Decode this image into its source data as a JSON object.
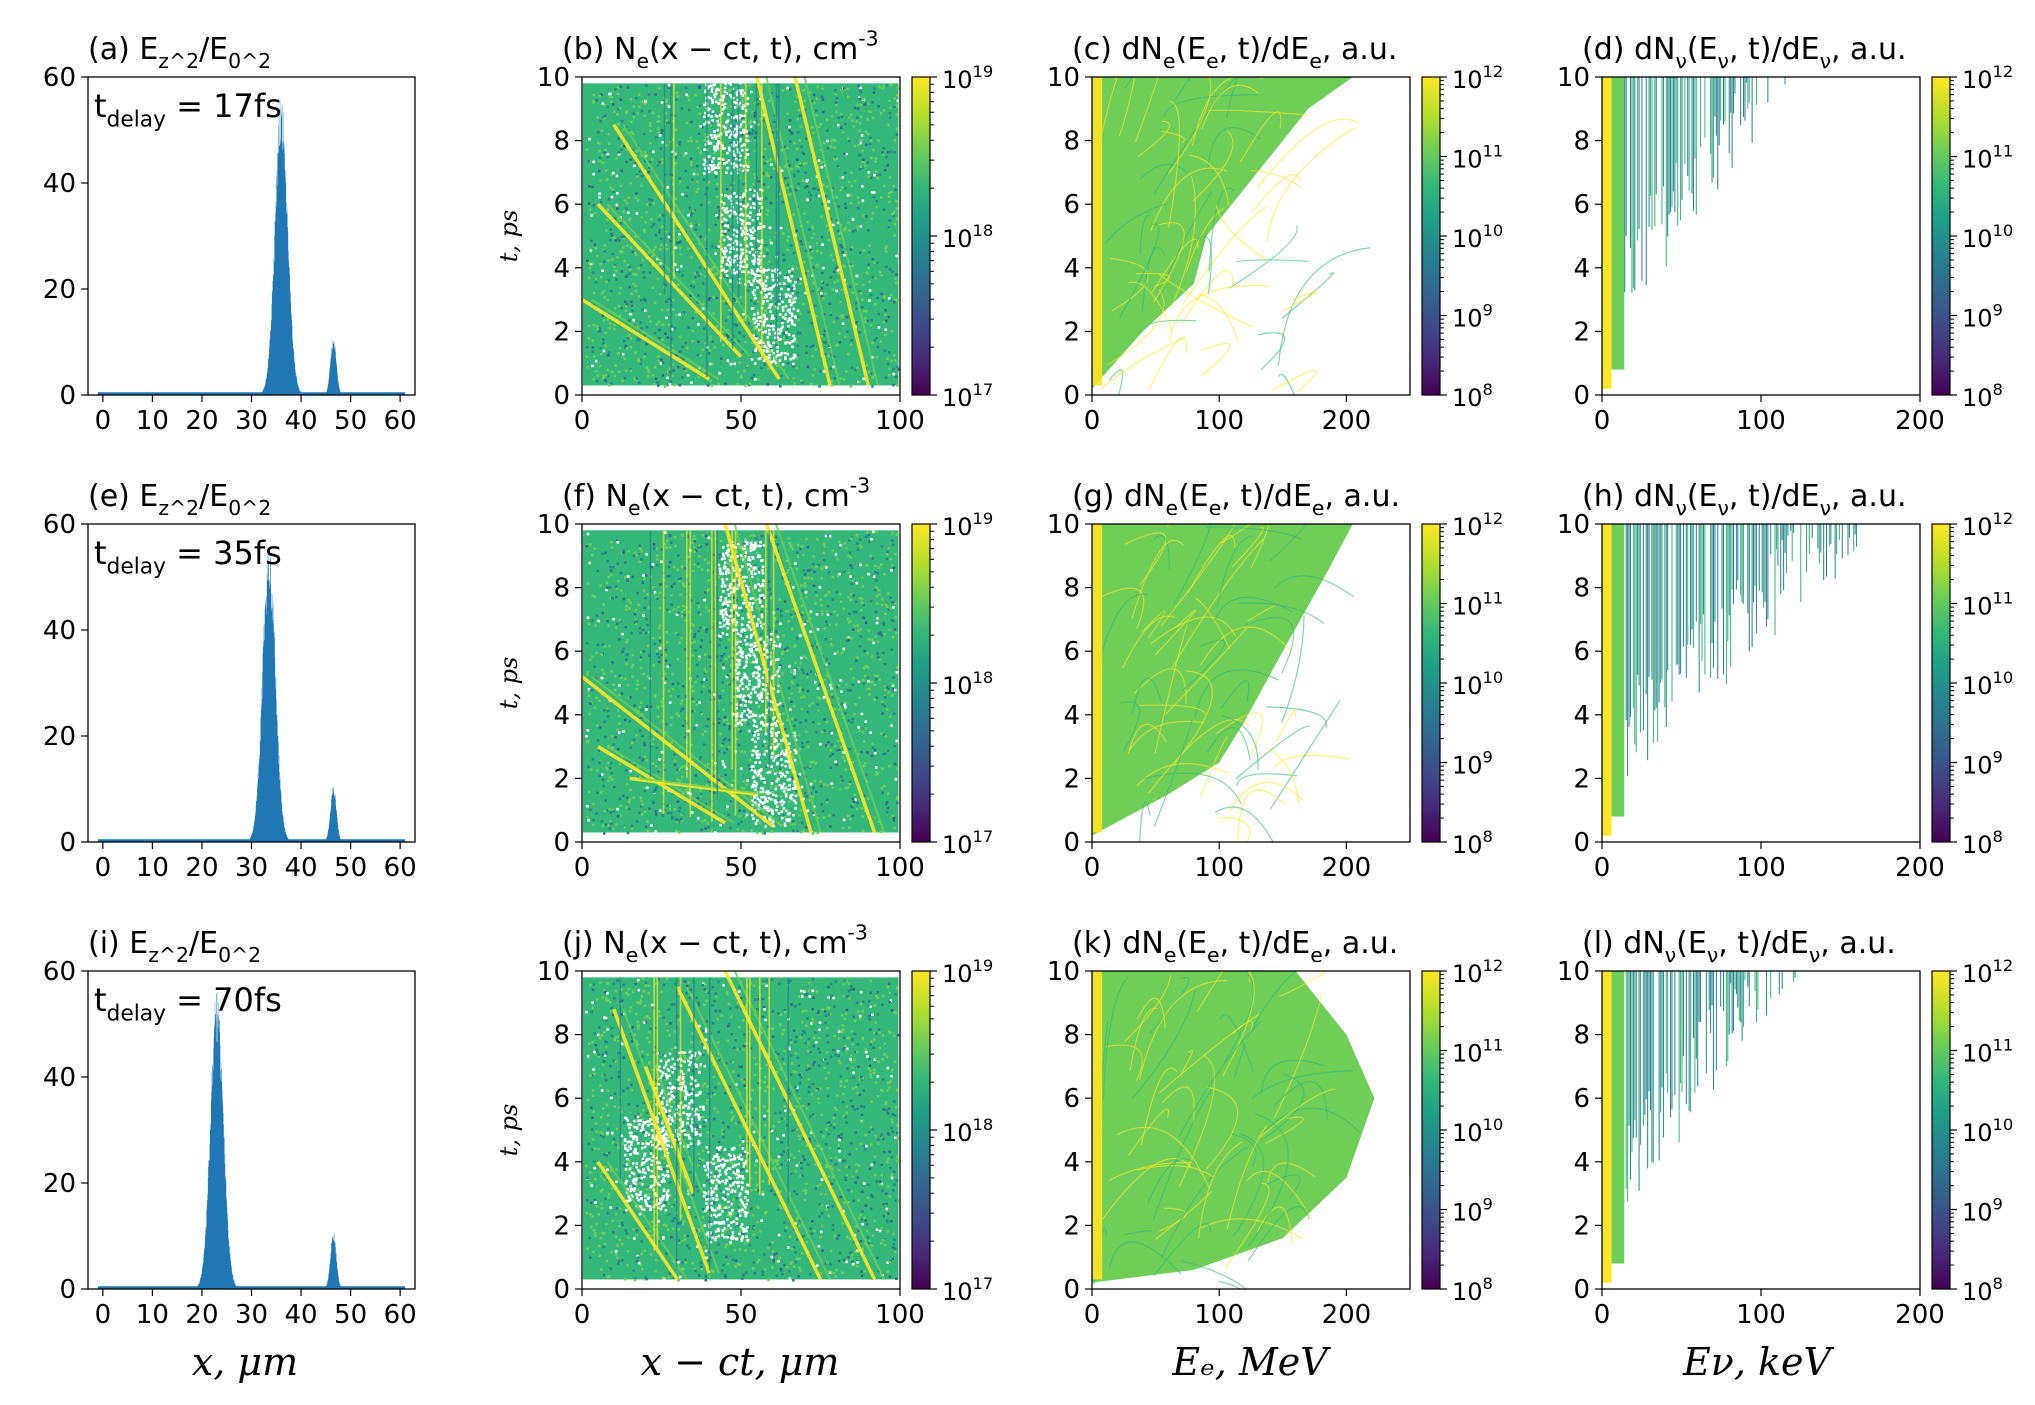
{
  "colors": {
    "bar": "#1f77b4",
    "viridis": [
      "#440154",
      "#482878",
      "#3e4a89",
      "#31688e",
      "#26828e",
      "#1f9e89",
      "#35b779",
      "#6ece58",
      "#b5de2b",
      "#fde725"
    ]
  },
  "xlabels": {
    "field": "x, μm",
    "density": "x − ct, μm",
    "electron": "Eₑ, MeV",
    "neutrino": "Eν, keV"
  },
  "ylabel_density": "t, ps",
  "chart_data": [
    {
      "type": "bar",
      "panel": "a",
      "title": "(a) E_z^2/E_0^2",
      "annotation": "t_delay = 17fs",
      "xlim": [
        -3,
        63
      ],
      "ylim": [
        0,
        60
      ],
      "xticks": [
        0,
        10,
        20,
        30,
        40,
        50,
        60
      ],
      "yticks": [
        0,
        20,
        40,
        60
      ],
      "peaks": [
        {
          "center": 36,
          "height": 54,
          "width": 1.3
        },
        {
          "center": 46.5,
          "height": 10.5,
          "width": 0.6
        }
      ]
    },
    {
      "type": "heatmap",
      "panel": "b",
      "title": "(b) N_e(x − ct, t), cm^-3",
      "xlim": [
        0,
        100
      ],
      "ylim": [
        0,
        10
      ],
      "xticks": [
        0,
        50,
        100
      ],
      "yticks": [
        0,
        2,
        4,
        6,
        8,
        10
      ],
      "colorbar": {
        "min_exp": 17,
        "max_exp": 19,
        "labels": [
          "10^19",
          "10^18",
          "10^17"
        ]
      }
    },
    {
      "type": "heatmap",
      "panel": "c",
      "title": "(c) dN_e(E_e, t)/dE_e, a.u.",
      "xlim": [
        0,
        250
      ],
      "ylim": [
        0,
        10
      ],
      "xticks": [
        0,
        100,
        200
      ],
      "yticks": [
        0,
        2,
        4,
        6,
        8,
        10
      ],
      "colorbar": {
        "min_exp": 8,
        "max_exp": 12,
        "labels": [
          "10^12",
          "10^11",
          "10^10",
          "10^9",
          "10^8"
        ]
      }
    },
    {
      "type": "heatmap",
      "panel": "d",
      "title": "(d) dN_ν(E_ν, t)/dE_ν, a.u.",
      "xlim": [
        0,
        200
      ],
      "ylim": [
        0,
        10
      ],
      "xticks": [
        0,
        100,
        200
      ],
      "yticks": [
        0,
        2,
        4,
        6,
        8,
        10
      ],
      "colorbar": {
        "min_exp": 8,
        "max_exp": 12,
        "labels": [
          "10^12",
          "10^11",
          "10^10",
          "10^9",
          "10^8"
        ]
      }
    },
    {
      "type": "bar",
      "panel": "e",
      "title": "(e) E_z^2/E_0^2",
      "annotation": "t_delay = 35fs",
      "xlim": [
        -3,
        63
      ],
      "ylim": [
        0,
        60
      ],
      "xticks": [
        0,
        10,
        20,
        30,
        40,
        50,
        60
      ],
      "yticks": [
        0,
        20,
        40,
        60
      ],
      "peaks": [
        {
          "center": 33.5,
          "height": 54,
          "width": 1.3
        },
        {
          "center": 46.5,
          "height": 10.5,
          "width": 0.6
        }
      ]
    },
    {
      "type": "heatmap",
      "panel": "f",
      "title": "(f) N_e(x − ct, t), cm^-3",
      "xlim": [
        0,
        100
      ],
      "ylim": [
        0,
        10
      ],
      "xticks": [
        0,
        50,
        100
      ],
      "yticks": [
        0,
        2,
        4,
        6,
        8,
        10
      ],
      "colorbar": {
        "min_exp": 17,
        "max_exp": 19,
        "labels": [
          "10^19",
          "10^18",
          "10^17"
        ]
      }
    },
    {
      "type": "heatmap",
      "panel": "g",
      "title": "(g) dN_e(E_e, t)/dE_e, a.u.",
      "xlim": [
        0,
        250
      ],
      "ylim": [
        0,
        10
      ],
      "xticks": [
        0,
        100,
        200
      ],
      "yticks": [
        0,
        2,
        4,
        6,
        8,
        10
      ],
      "colorbar": {
        "min_exp": 8,
        "max_exp": 12,
        "labels": [
          "10^12",
          "10^11",
          "10^10",
          "10^9",
          "10^8"
        ]
      }
    },
    {
      "type": "heatmap",
      "panel": "h",
      "title": "(h) dN_ν(E_ν, t)/dE_ν, a.u.",
      "xlim": [
        0,
        200
      ],
      "ylim": [
        0,
        10
      ],
      "xticks": [
        0,
        100,
        200
      ],
      "yticks": [
        0,
        2,
        4,
        6,
        8,
        10
      ],
      "colorbar": {
        "min_exp": 8,
        "max_exp": 12,
        "labels": [
          "10^12",
          "10^11",
          "10^10",
          "10^9",
          "10^8"
        ]
      }
    },
    {
      "type": "bar",
      "panel": "i",
      "title": "(i) E_z^2/E_0^2",
      "annotation": "t_delay = 70fs",
      "xlim": [
        -3,
        63
      ],
      "ylim": [
        0,
        60
      ],
      "xticks": [
        0,
        10,
        20,
        30,
        40,
        50,
        60
      ],
      "yticks": [
        0,
        20,
        40,
        60
      ],
      "peaks": [
        {
          "center": 23,
          "height": 54,
          "width": 1.3
        },
        {
          "center": 46.5,
          "height": 10.5,
          "width": 0.6
        }
      ]
    },
    {
      "type": "heatmap",
      "panel": "j",
      "title": "(j) N_e(x − ct, t), cm^-3",
      "xlim": [
        0,
        100
      ],
      "ylim": [
        0,
        10
      ],
      "xticks": [
        0,
        50,
        100
      ],
      "yticks": [
        0,
        2,
        4,
        6,
        8,
        10
      ],
      "colorbar": {
        "min_exp": 17,
        "max_exp": 19,
        "labels": [
          "10^19",
          "10^18",
          "10^17"
        ]
      }
    },
    {
      "type": "heatmap",
      "panel": "k",
      "title": "(k) dN_e(E_e, t)/dE_e, a.u.",
      "xlim": [
        0,
        250
      ],
      "ylim": [
        0,
        10
      ],
      "xticks": [
        0,
        100,
        200
      ],
      "yticks": [
        0,
        2,
        4,
        6,
        8,
        10
      ],
      "colorbar": {
        "min_exp": 8,
        "max_exp": 12,
        "labels": [
          "10^12",
          "10^11",
          "10^10",
          "10^9",
          "10^8"
        ]
      }
    },
    {
      "type": "heatmap",
      "panel": "l",
      "title": "(l) dN_ν(E_ν, t)/dE_ν, a.u.",
      "xlim": [
        0,
        200
      ],
      "ylim": [
        0,
        10
      ],
      "xticks": [
        0,
        100,
        200
      ],
      "yticks": [
        0,
        2,
        4,
        6,
        8,
        10
      ],
      "colorbar": {
        "min_exp": 8,
        "max_exp": 12,
        "labels": [
          "10^12",
          "10^11",
          "10^10",
          "10^9",
          "10^8"
        ]
      }
    }
  ]
}
